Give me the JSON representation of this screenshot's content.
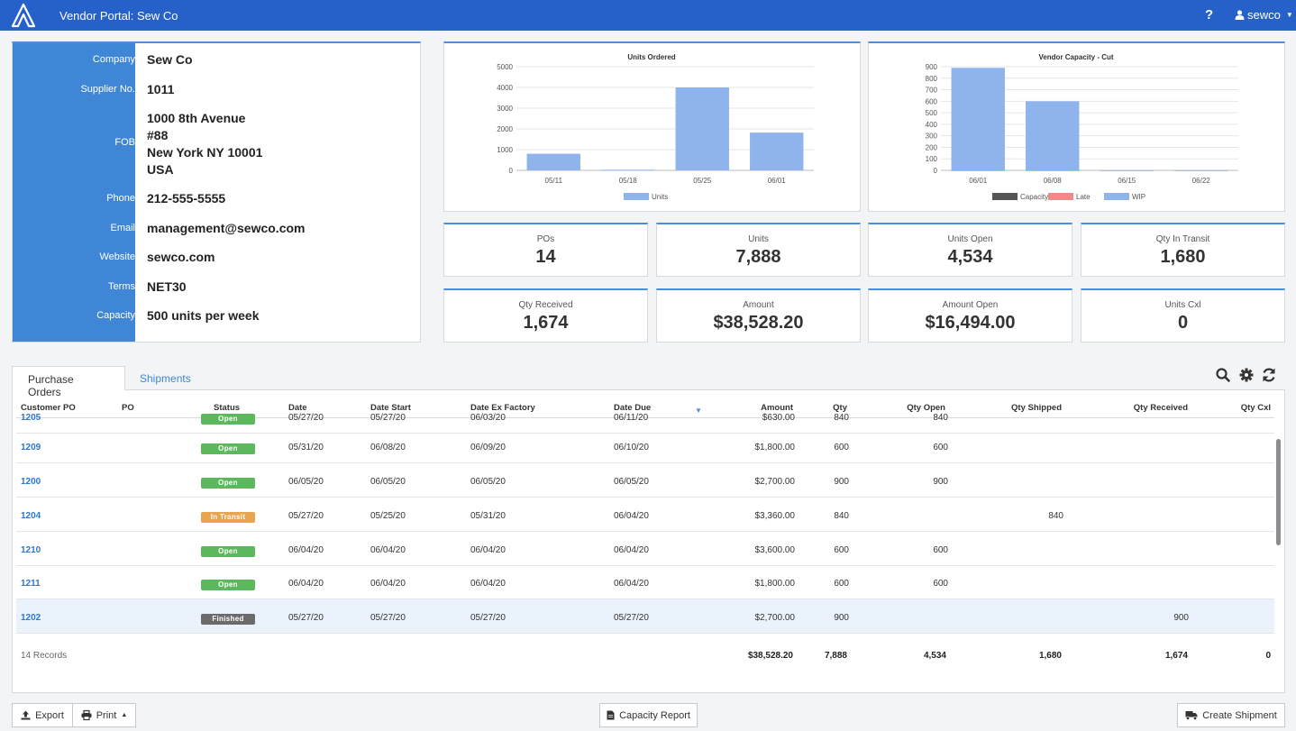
{
  "app": {
    "title": "Vendor Portal: Sew Co",
    "help_label": "?",
    "user": "sewco"
  },
  "vendor": {
    "fields": [
      {
        "label": "Company",
        "value": "Sew Co"
      },
      {
        "label": "Supplier No.",
        "value": "1011"
      },
      {
        "label": "Phone",
        "value": "212-555-5555"
      },
      {
        "label": "Email",
        "value": "management@sewco.com"
      },
      {
        "label": "Website",
        "value": "sewco.com"
      },
      {
        "label": "Terms",
        "value": "NET30"
      },
      {
        "label": "Capacity",
        "value": "500 units per week"
      }
    ],
    "fob": {
      "label": "FOB",
      "lines": [
        "1000 8th Avenue",
        "#88",
        "New York NY 10001",
        "USA"
      ]
    }
  },
  "chart_data": [
    {
      "type": "bar",
      "title": "Units Ordered",
      "categories": [
        "05/11",
        "05/18",
        "05/25",
        "06/01"
      ],
      "series": [
        {
          "name": "Units",
          "values": [
            800,
            30,
            4000,
            1820
          ],
          "color": "#8fb4ec"
        }
      ],
      "ylim": [
        0,
        5000
      ],
      "yticks": [
        0,
        1000,
        2000,
        3000,
        4000,
        5000
      ],
      "grid": true,
      "legend": "bottom"
    },
    {
      "type": "bar",
      "title": "Vendor Capacity - Cut",
      "categories": [
        "06/01",
        "06/08",
        "06/15",
        "06/22"
      ],
      "series": [
        {
          "name": "Capacity",
          "values": [
            0,
            0,
            0,
            0
          ],
          "color": "#555555"
        },
        {
          "name": "Late",
          "values": [
            0,
            0,
            0,
            0
          ],
          "color": "#f08a8a"
        },
        {
          "name": "WIP",
          "values": [
            890,
            600,
            0,
            0
          ],
          "color": "#8fb4ec"
        }
      ],
      "ylim": [
        0,
        900
      ],
      "yticks": [
        0,
        100,
        200,
        300,
        400,
        500,
        600,
        700,
        800,
        900
      ],
      "grid": true,
      "legend": "bottom"
    }
  ],
  "stats": [
    {
      "label": "POs",
      "value": "14"
    },
    {
      "label": "Units",
      "value": "7,888"
    },
    {
      "label": "Units Open",
      "value": "4,534"
    },
    {
      "label": "Qty In Transit",
      "value": "1,680"
    },
    {
      "label": "Qty Received",
      "value": "1,674"
    },
    {
      "label": "Amount",
      "value": "$38,528.20"
    },
    {
      "label": "Amount Open",
      "value": "$16,494.00"
    },
    {
      "label": "Units Cxl",
      "value": "0"
    }
  ],
  "tabs": {
    "purchase_orders": "Purchase Orders",
    "shipments": "Shipments"
  },
  "table": {
    "columns": {
      "customer_po": "Customer PO",
      "po": "PO",
      "status": "Status",
      "date": "Date",
      "date_start": "Date Start",
      "date_ex_factory": "Date Ex Factory",
      "date_due": "Date Due",
      "amount": "Amount",
      "qty": "Qty",
      "qty_open": "Qty Open",
      "qty_shipped": "Qty Shipped",
      "qty_received": "Qty Received",
      "qty_cxl": "Qty Cxl"
    },
    "rows": [
      {
        "customer_po": "1205",
        "status": "Open",
        "status_color": "#5cb85c",
        "date": "05/27/20",
        "date_start": "05/27/20",
        "date_ex_factory": "06/03/20",
        "date_due": "06/11/20",
        "amount": "$630.00",
        "qty": "840",
        "qty_open": "840",
        "qty_shipped": "",
        "qty_received": ""
      },
      {
        "customer_po": "1209",
        "status": "Open",
        "status_color": "#5cb85c",
        "date": "05/31/20",
        "date_start": "06/08/20",
        "date_ex_factory": "06/09/20",
        "date_due": "06/10/20",
        "amount": "$1,800.00",
        "qty": "600",
        "qty_open": "600",
        "qty_shipped": "",
        "qty_received": ""
      },
      {
        "customer_po": "1200",
        "status": "Open",
        "status_color": "#5cb85c",
        "date": "06/05/20",
        "date_start": "06/05/20",
        "date_ex_factory": "06/05/20",
        "date_due": "06/05/20",
        "amount": "$2,700.00",
        "qty": "900",
        "qty_open": "900",
        "qty_shipped": "",
        "qty_received": ""
      },
      {
        "customer_po": "1204",
        "status": "In Transit",
        "status_color": "#e8a44f",
        "date": "05/27/20",
        "date_start": "05/25/20",
        "date_ex_factory": "05/31/20",
        "date_due": "06/04/20",
        "amount": "$3,360.00",
        "qty": "840",
        "qty_open": "",
        "qty_shipped": "840",
        "qty_received": ""
      },
      {
        "customer_po": "1210",
        "status": "Open",
        "status_color": "#5cb85c",
        "date": "06/04/20",
        "date_start": "06/04/20",
        "date_ex_factory": "06/04/20",
        "date_due": "06/04/20",
        "amount": "$3,600.00",
        "qty": "600",
        "qty_open": "600",
        "qty_shipped": "",
        "qty_received": ""
      },
      {
        "customer_po": "1211",
        "status": "Open",
        "status_color": "#5cb85c",
        "date": "06/04/20",
        "date_start": "06/04/20",
        "date_ex_factory": "06/04/20",
        "date_due": "06/04/20",
        "amount": "$1,800.00",
        "qty": "600",
        "qty_open": "600",
        "qty_shipped": "",
        "qty_received": ""
      },
      {
        "customer_po": "1202",
        "status": "Finished",
        "status_color": "#6b6b6b",
        "date": "05/27/20",
        "date_start": "05/27/20",
        "date_ex_factory": "05/27/20",
        "date_due": "05/27/20",
        "amount": "$2,700.00",
        "qty": "900",
        "qty_open": "",
        "qty_shipped": "",
        "qty_received": "900"
      }
    ],
    "footer": {
      "records": "14 Records",
      "amount": "$38,528.20",
      "qty": "7,888",
      "qty_open": "4,534",
      "qty_shipped": "1,680",
      "qty_received": "1,674",
      "qty_cxl": "0"
    }
  },
  "buttons": {
    "export": "Export",
    "print": "Print",
    "capacity_report": "Capacity Report",
    "create_shipment": "Create Shipment"
  }
}
